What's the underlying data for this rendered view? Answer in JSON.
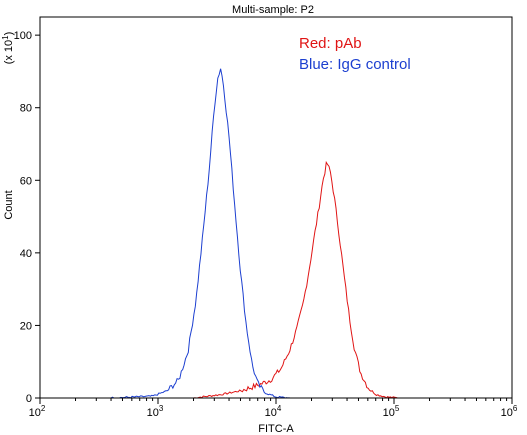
{
  "chart_data": {
    "type": "line",
    "title": "Multi-sample: P2",
    "xlabel": "FITC-A",
    "ylabel": "Count",
    "y_multiplier_label": "(x 10",
    "y_multiplier_exp": "1",
    "x_scale": "log",
    "xlim": [
      100,
      1000000
    ],
    "ylim": [
      0,
      105
    ],
    "x_ticks": [
      {
        "value": 100,
        "base": "10",
        "exp": "2"
      },
      {
        "value": 1000,
        "base": "10",
        "exp": "3"
      },
      {
        "value": 10000,
        "base": "10",
        "exp": "4"
      },
      {
        "value": 100000,
        "base": "10",
        "exp": "5"
      },
      {
        "value": 1000000,
        "base": "10",
        "exp": "6"
      }
    ],
    "y_ticks": [
      0,
      20,
      40,
      60,
      80,
      100
    ],
    "grid": false,
    "legend": {
      "placement": "top-right",
      "entries": [
        {
          "text": "Red: pAb",
          "color": "#e01414"
        },
        {
          "text": "Blue: IgG control",
          "color": "#1c3fd0"
        }
      ]
    },
    "series": [
      {
        "color": "#e01414",
        "points": [
          [
            2000,
            0
          ],
          [
            3500,
            1
          ],
          [
            5000,
            2
          ],
          [
            7000,
            3.5
          ],
          [
            9000,
            5
          ],
          [
            11000,
            8
          ],
          [
            13000,
            13
          ],
          [
            15000,
            19
          ],
          [
            17000,
            26
          ],
          [
            19000,
            35
          ],
          [
            21000,
            44
          ],
          [
            23000,
            52
          ],
          [
            25000,
            60
          ],
          [
            27000,
            65
          ],
          [
            29000,
            62
          ],
          [
            31000,
            56
          ],
          [
            34000,
            46
          ],
          [
            38000,
            33
          ],
          [
            42000,
            22
          ],
          [
            46000,
            14
          ],
          [
            52000,
            7
          ],
          [
            60000,
            3
          ],
          [
            70000,
            1
          ],
          [
            85000,
            0.3
          ],
          [
            110000,
            0
          ]
        ]
      },
      {
        "color": "#1c3fd0",
        "points": [
          [
            400,
            0
          ],
          [
            900,
            0.5
          ],
          [
            1200,
            2
          ],
          [
            1500,
            5
          ],
          [
            1800,
            13
          ],
          [
            2100,
            27
          ],
          [
            2400,
            45
          ],
          [
            2700,
            62
          ],
          [
            3000,
            80
          ],
          [
            3200,
            88
          ],
          [
            3400,
            91
          ],
          [
            3600,
            86
          ],
          [
            4000,
            72
          ],
          [
            4500,
            52
          ],
          [
            5000,
            35
          ],
          [
            5600,
            20
          ],
          [
            6300,
            9
          ],
          [
            7000,
            4
          ],
          [
            8000,
            1.5
          ],
          [
            10000,
            0.3
          ],
          [
            13000,
            0
          ]
        ]
      }
    ]
  }
}
